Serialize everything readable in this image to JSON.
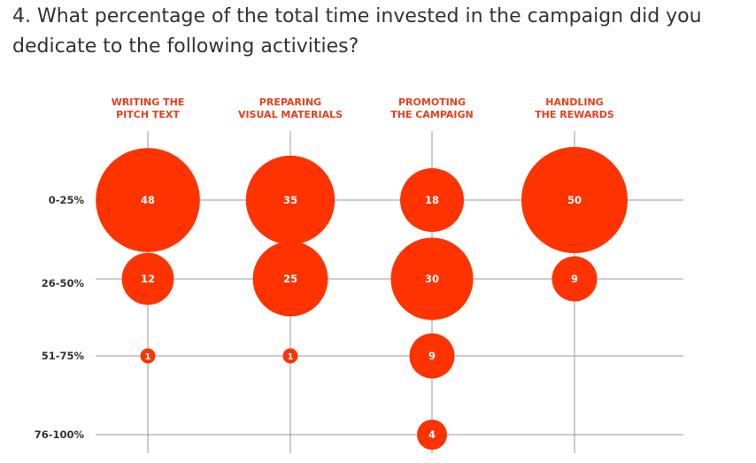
{
  "question": "4. What percentage of the total time invested in the campaign did you dedicate to the following activities?",
  "colors": {
    "bubble": "#ff3300",
    "column_label": "#e8401c",
    "grid": "#999999",
    "text": "#333333"
  },
  "chart_data": {
    "type": "bubble-matrix",
    "title": "4. What percentage of the total time invested in the campaign did you dedicate to the following activities?",
    "columns": [
      {
        "key": "writing",
        "label_lines": [
          "WRITING THE",
          "PITCH TEXT"
        ]
      },
      {
        "key": "visual",
        "label_lines": [
          "PREPARING",
          "VISUAL MATERIALS"
        ]
      },
      {
        "key": "promoting",
        "label_lines": [
          "PROMOTING",
          "THE CAMPAIGN"
        ]
      },
      {
        "key": "rewards",
        "label_lines": [
          "HANDLING",
          "THE REWARDS"
        ]
      }
    ],
    "rows": [
      "0-25%",
      "26-50%",
      "51-75%",
      "76-100%"
    ],
    "values": [
      [
        48,
        35,
        18,
        50
      ],
      [
        12,
        25,
        30,
        9
      ],
      [
        1,
        1,
        9,
        null
      ],
      [
        null,
        null,
        4,
        null
      ]
    ],
    "grid": true
  }
}
